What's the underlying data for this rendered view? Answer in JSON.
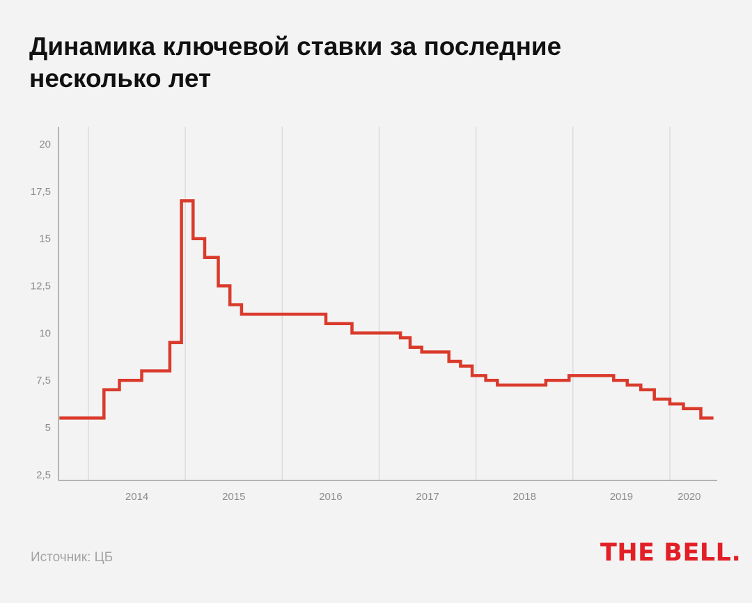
{
  "header": {
    "title_line1": "Динамика ключевой ставки за последние",
    "title_line2": "несколько лет"
  },
  "footer": {
    "source": "Источник: ЦБ",
    "logo_text": "THE BELL."
  },
  "colors": {
    "line": "#d93a2b",
    "grid": "#dcdcdc",
    "axis": "#a0a0a0",
    "background": "#f4f3f3",
    "logo": "#e21f26"
  },
  "chart_data": {
    "type": "line",
    "step": true,
    "title": "Динамика ключевой ставки за последние несколько лет",
    "xlabel": "",
    "ylabel": "",
    "xlim": [
      2013.7,
      2020.45
    ],
    "ylim": [
      2,
      20.9
    ],
    "y_ticks": [
      {
        "value": 2.5,
        "label": "2,5"
      },
      {
        "value": 5,
        "label": "5"
      },
      {
        "value": 7.5,
        "label": "7,5"
      },
      {
        "value": 10,
        "label": "10"
      },
      {
        "value": 12.5,
        "label": "12,5"
      },
      {
        "value": 15,
        "label": "15"
      },
      {
        "value": 17.5,
        "label": "17,5"
      },
      {
        "value": 20,
        "label": "20"
      }
    ],
    "x_ticks": [
      {
        "value": 2014.5,
        "label": "2014"
      },
      {
        "value": 2015.5,
        "label": "2015"
      },
      {
        "value": 2016.5,
        "label": "2016"
      },
      {
        "value": 2017.5,
        "label": "2017"
      },
      {
        "value": 2018.5,
        "label": "2018"
      },
      {
        "value": 2019.5,
        "label": "2019"
      },
      {
        "value": 2020.2,
        "label": "2020"
      }
    ],
    "gridlines_x": [
      2014,
      2015,
      2016,
      2017,
      2018,
      2019,
      2020
    ],
    "grid": true,
    "series": [
      {
        "values": [
          {
            "x": 2013.7,
            "y": 5.5
          },
          {
            "x": 2014.16,
            "y": 7.0
          },
          {
            "x": 2014.32,
            "y": 7.5
          },
          {
            "x": 2014.55,
            "y": 8.0
          },
          {
            "x": 2014.84,
            "y": 9.5
          },
          {
            "x": 2014.96,
            "y": 17.0
          },
          {
            "x": 2015.08,
            "y": 15.0
          },
          {
            "x": 2015.2,
            "y": 14.0
          },
          {
            "x": 2015.34,
            "y": 12.5
          },
          {
            "x": 2015.46,
            "y": 11.5
          },
          {
            "x": 2015.58,
            "y": 11.0
          },
          {
            "x": 2016.45,
            "y": 10.5
          },
          {
            "x": 2016.72,
            "y": 10.0
          },
          {
            "x": 2017.22,
            "y": 9.75
          },
          {
            "x": 2017.32,
            "y": 9.25
          },
          {
            "x": 2017.44,
            "y": 9.0
          },
          {
            "x": 2017.72,
            "y": 8.5
          },
          {
            "x": 2017.84,
            "y": 8.25
          },
          {
            "x": 2017.96,
            "y": 7.75
          },
          {
            "x": 2018.1,
            "y": 7.5
          },
          {
            "x": 2018.22,
            "y": 7.25
          },
          {
            "x": 2018.72,
            "y": 7.5
          },
          {
            "x": 2018.96,
            "y": 7.75
          },
          {
            "x": 2019.42,
            "y": 7.5
          },
          {
            "x": 2019.56,
            "y": 7.25
          },
          {
            "x": 2019.7,
            "y": 7.0
          },
          {
            "x": 2019.84,
            "y": 6.5
          },
          {
            "x": 2020.0,
            "y": 6.25
          },
          {
            "x": 2020.14,
            "y": 6.0
          },
          {
            "x": 2020.32,
            "y": 5.5
          },
          {
            "x": 2020.45,
            "y": 5.5
          }
        ]
      }
    ]
  }
}
